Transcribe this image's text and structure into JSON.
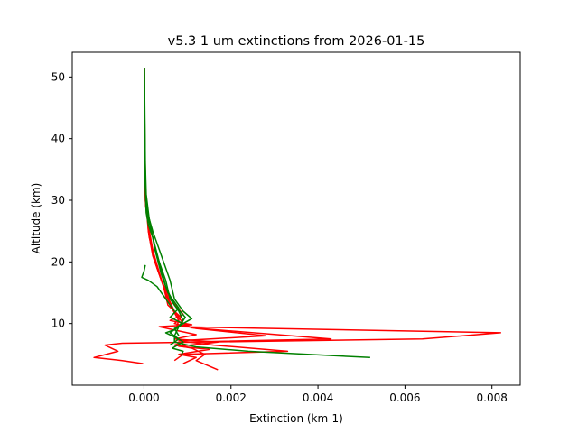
{
  "chart_data": {
    "type": "line",
    "title": "v5.3 1 um extinctions from 2026-01-15",
    "xlabel": "Extinction (km-1)",
    "ylabel": "Altitude (km)",
    "xlim": [
      -0.00165,
      0.00865
    ],
    "ylim": [
      0,
      54
    ],
    "x_ticks": [
      {
        "value": 0.0,
        "label": "0.000"
      },
      {
        "value": 0.002,
        "label": "0.002"
      },
      {
        "value": 0.004,
        "label": "0.004"
      },
      {
        "value": 0.006,
        "label": "0.006"
      },
      {
        "value": 0.008,
        "label": "0.008"
      }
    ],
    "y_ticks": [
      {
        "value": 10,
        "label": "10"
      },
      {
        "value": 20,
        "label": "20"
      },
      {
        "value": 30,
        "label": "30"
      },
      {
        "value": 40,
        "label": "40"
      },
      {
        "value": 50,
        "label": "50"
      }
    ],
    "grid": false,
    "legend": "none",
    "colors": {
      "red": "#ff0000",
      "green": "#008000"
    },
    "series": [
      {
        "color": "red",
        "points": [
          [
            1e-05,
            51.5
          ],
          [
            1e-05,
            45
          ],
          [
            1e-05,
            40
          ],
          [
            2e-05,
            35
          ],
          [
            3e-05,
            30
          ],
          [
            8e-05,
            27
          ],
          [
            0.0001,
            25
          ],
          [
            0.00015,
            23
          ],
          [
            0.00025,
            20
          ],
          [
            0.0004,
            17
          ],
          [
            0.0006,
            13
          ],
          [
            0.0008,
            10.5
          ],
          [
            0.00075,
            9.5
          ],
          [
            0.0082,
            8.5
          ],
          [
            0.0064,
            7.5
          ],
          [
            -0.0005,
            6.8
          ],
          [
            -0.0009,
            6.5
          ],
          [
            -0.0006,
            5.5
          ],
          [
            -0.00115,
            4.5
          ],
          [
            -0.0005,
            4
          ],
          [
            -2e-05,
            3.5
          ]
        ]
      },
      {
        "color": "red",
        "points": [
          [
            1e-05,
            51.5
          ],
          [
            1e-05,
            42
          ],
          [
            2e-05,
            34
          ],
          [
            4e-05,
            29
          ],
          [
            0.0001,
            26
          ],
          [
            0.0002,
            22
          ],
          [
            0.0003,
            19
          ],
          [
            0.0005,
            15
          ],
          [
            0.0007,
            12
          ],
          [
            0.0009,
            10
          ],
          [
            0.0011,
            9.3
          ],
          [
            0.0043,
            7.5
          ],
          [
            0.0009,
            7
          ],
          [
            0.0007,
            6.5
          ],
          [
            0.0011,
            6
          ],
          [
            0.0014,
            5
          ],
          [
            0.0012,
            4
          ],
          [
            0.0017,
            2.5
          ]
        ]
      },
      {
        "color": "red",
        "points": [
          [
            1e-05,
            51.5
          ],
          [
            2e-05,
            38
          ],
          [
            3e-05,
            31
          ],
          [
            7e-05,
            28
          ],
          [
            0.00012,
            24
          ],
          [
            0.00028,
            20
          ],
          [
            0.00045,
            16
          ],
          [
            0.00055,
            13
          ],
          [
            0.00085,
            11
          ],
          [
            0.0007,
            10
          ],
          [
            0.0012,
            9.2
          ],
          [
            0.0028,
            8
          ],
          [
            0.0008,
            7.2
          ],
          [
            0.0016,
            6.5
          ],
          [
            0.0033,
            5.5
          ],
          [
            0.0009,
            5
          ],
          [
            0.0007,
            4
          ]
        ]
      },
      {
        "color": "red",
        "points": [
          [
            1e-05,
            51.5
          ],
          [
            2e-05,
            40
          ],
          [
            4e-05,
            30
          ],
          [
            0.0001,
            25
          ],
          [
            0.0002,
            21
          ],
          [
            0.0004,
            17
          ],
          [
            0.0006,
            14
          ],
          [
            0.0009,
            11.5
          ],
          [
            0.0006,
            10.5
          ],
          [
            0.0011,
            9.8
          ],
          [
            0.00035,
            9.5
          ],
          [
            0.0008,
            8.8
          ],
          [
            0.0012,
            8.2
          ],
          [
            0.0007,
            7.5
          ],
          [
            0.0017,
            7
          ],
          [
            0.0008,
            6.3
          ],
          [
            0.0015,
            5.8
          ],
          [
            0.0008,
            5
          ],
          [
            0.0012,
            4.5
          ],
          [
            0.0009,
            3.5
          ]
        ]
      },
      {
        "color": "green",
        "points": [
          [
            1e-05,
            51.5
          ],
          [
            1e-05,
            48
          ],
          [
            1e-05,
            42
          ],
          [
            2e-05,
            37
          ],
          [
            3e-05,
            32
          ],
          [
            5e-05,
            28
          ],
          [
            0.0001,
            26
          ],
          [
            0.0002,
            24
          ],
          [
            0.0003,
            21
          ],
          [
            0.0005,
            17
          ],
          [
            0.0006,
            14
          ],
          [
            0.0008,
            12
          ],
          [
            0.0009,
            10.5
          ],
          [
            0.0008,
            9.5
          ],
          [
            0.0007,
            8
          ],
          [
            0.0007,
            7
          ],
          [
            0.0012,
            6.2
          ],
          [
            0.0024,
            5.5
          ],
          [
            0.0052,
            4.5
          ]
        ]
      },
      {
        "color": "green",
        "points": [
          [
            1e-05,
            51.5
          ],
          [
            1e-05,
            45
          ],
          [
            2e-05,
            38
          ],
          [
            4e-05,
            30
          ],
          [
            0.0001,
            27
          ],
          [
            0.0002,
            24
          ],
          [
            0.00035,
            20
          ],
          [
            0.0005,
            16
          ],
          [
            0.0007,
            13
          ],
          [
            0.00095,
            11
          ],
          [
            0.0008,
            9.5
          ],
          [
            0.0006,
            8.5
          ],
          [
            0.0009,
            7
          ],
          [
            0.00065,
            6
          ],
          [
            0.0009,
            5.5
          ],
          [
            0.00085,
            4.8
          ]
        ]
      },
      {
        "color": "green",
        "points": [
          [
            1e-05,
            51.5
          ],
          [
            2e-05,
            40
          ],
          [
            3e-05,
            33
          ],
          [
            6e-05,
            29
          ],
          [
            0.00015,
            26
          ],
          [
            0.00025,
            22
          ],
          [
            0.0004,
            18
          ],
          [
            0.00055,
            15
          ],
          [
            0.0008,
            12.5
          ],
          [
            0.0006,
            11
          ],
          [
            0.0009,
            10
          ],
          [
            0.0007,
            9
          ],
          [
            0.0005,
            8.5
          ],
          [
            0.0008,
            7.5
          ],
          [
            0.0006,
            6.5
          ]
        ]
      },
      {
        "color": "green",
        "points": [
          [
            1e-05,
            51.5
          ],
          [
            2e-05,
            44
          ],
          [
            3e-05,
            36
          ],
          [
            5e-05,
            31
          ],
          [
            0.00012,
            27
          ],
          [
            0.0002,
            25
          ],
          [
            0.0003,
            23
          ],
          [
            0.00045,
            20
          ],
          [
            0.0006,
            17
          ],
          [
            0.0007,
            14
          ],
          [
            0.0009,
            12
          ],
          [
            0.0011,
            10.8
          ],
          [
            0.0009,
            10
          ],
          [
            0.0007,
            9.2
          ],
          [
            0.0008,
            8
          ]
        ]
      },
      {
        "color": "green",
        "points": [
          [
            3e-05,
            19.5
          ],
          [
            0.0,
            18.5
          ],
          [
            -5e-05,
            17.5
          ],
          [
            0.0001,
            17
          ],
          [
            0.0003,
            16
          ],
          [
            0.0005,
            14
          ],
          [
            0.0007,
            12
          ]
        ]
      }
    ]
  }
}
